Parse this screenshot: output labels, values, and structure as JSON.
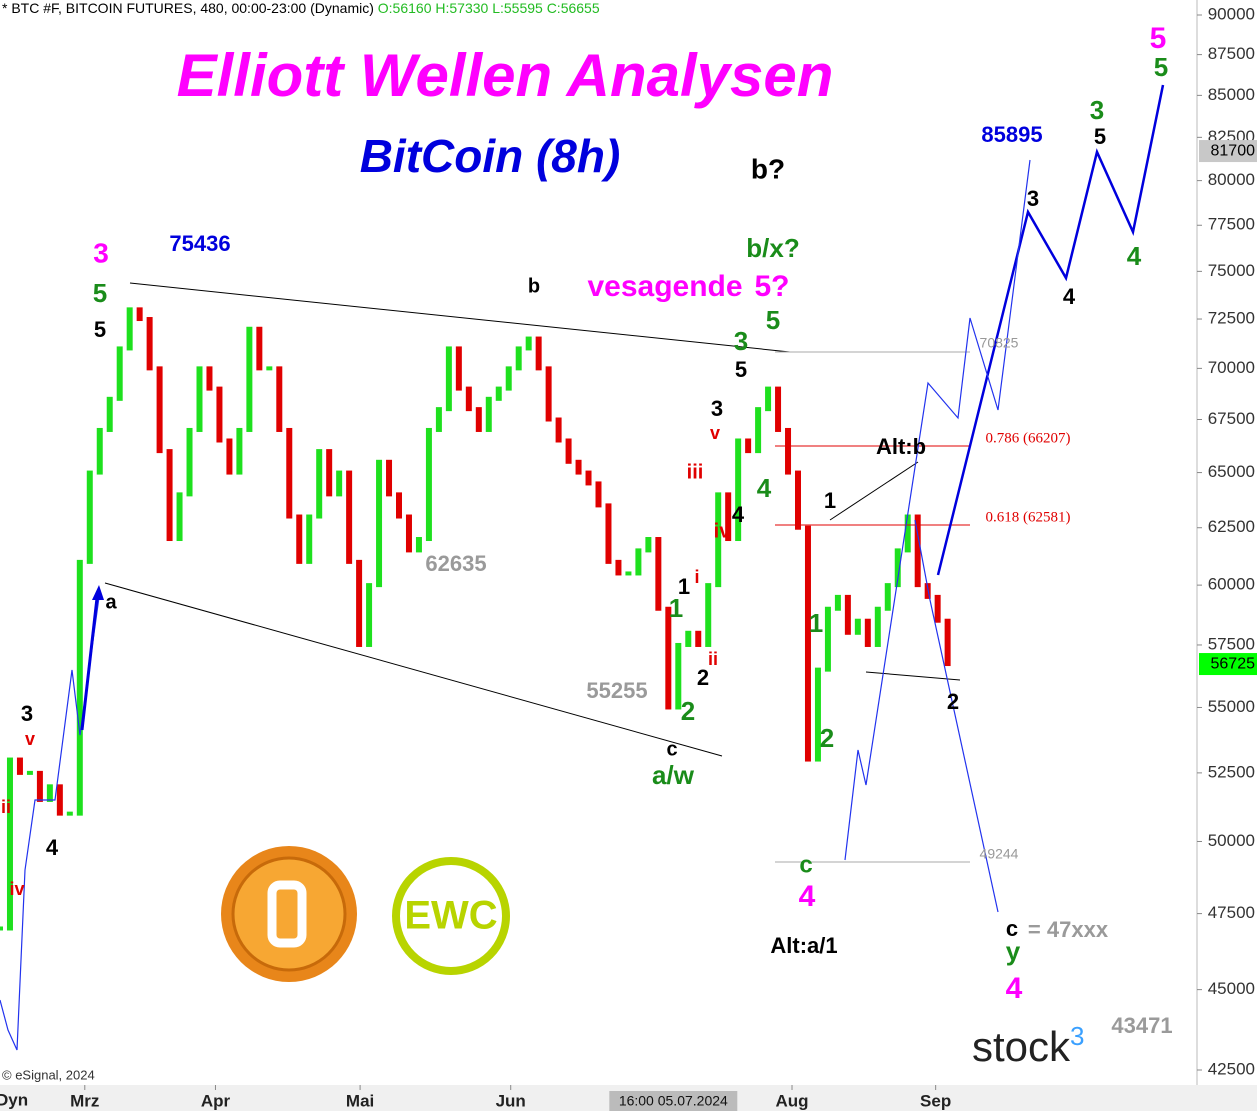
{
  "header": {
    "symbol": "* BTC #F, BITCOIN FUTURES, 480, 00:00-23:00 (Dynamic)",
    "ohlc": "O:56160 H:57330 L:55595 C:56655"
  },
  "chart_data": {
    "type": "candlestick",
    "title": "Elliott Wellen Analysen",
    "subtitle": "BitCoin (8h)",
    "values": [
      47000,
      53000,
      52500,
      52500,
      51500,
      52000,
      51000,
      51000,
      61000,
      65000,
      67000,
      68500,
      71000,
      73000,
      72500,
      70000,
      66000,
      62000,
      64000,
      67000,
      70000,
      69000,
      66500,
      65000,
      67000,
      72000,
      70000,
      70000,
      67000,
      63000,
      61000,
      63000,
      66000,
      64000,
      65000,
      61000,
      57500,
      60000,
      65500,
      64000,
      63000,
      61500,
      62000,
      67000,
      68000,
      71000,
      69000,
      68000,
      67000,
      68500,
      69000,
      70000,
      71000,
      71500,
      70000,
      67500,
      66500,
      65500,
      65000,
      64500,
      63500,
      61000,
      60500,
      60500,
      61500,
      62000,
      59000,
      55000,
      57500,
      58000,
      57500,
      60000,
      64000,
      62000,
      66500,
      66000,
      68000,
      69000,
      67000,
      65000,
      62500,
      53000,
      56500,
      59000,
      59500,
      58000,
      58500,
      57500,
      59000,
      60000,
      61500,
      63000,
      60000,
      59500,
      58500,
      56725
    ],
    "up_color": "#1ee01e",
    "down_color": "#e00000",
    "log_scale": true,
    "ylim": [
      42500,
      90000
    ],
    "yticks": [
      42500,
      45000,
      47500,
      50000,
      52500,
      55000,
      57500,
      60000,
      62500,
      65000,
      67500,
      70000,
      72500,
      75000,
      77500,
      80000,
      82500,
      85000,
      87500,
      90000
    ],
    "xlim": [
      0,
      120
    ],
    "xticks": [
      {
        "value": 8.5,
        "label": "Mrz"
      },
      {
        "value": 21.6,
        "label": "Apr"
      },
      {
        "value": 36.1,
        "label": "Mai"
      },
      {
        "value": 51.2,
        "label": "Jun"
      },
      {
        "value": 79.4,
        "label": "Aug"
      },
      {
        "value": 93.8,
        "label": "Sep"
      }
    ],
    "crosshair": {
      "value": 67.5,
      "label": "16:00 05.07.2024"
    },
    "last_price": 56725,
    "last_price_color": "#00ff00",
    "price_marker": 81700,
    "annotations": [
      "3",
      "5",
      "5",
      "75436",
      "a",
      "b",
      "vesagende",
      "5?",
      "b?",
      "b/x?",
      "5",
      "3",
      "5",
      "3",
      "v",
      "iii",
      "4",
      "4",
      "iv",
      "i",
      "1",
      "1",
      "ii",
      "2",
      "2",
      "c",
      "a/w",
      "62635",
      "55255",
      "1",
      "Alt:b",
      "1",
      "2",
      "c",
      "4",
      "Alt:a/1",
      "2",
      "85895",
      "3",
      "4",
      "3",
      "5",
      "4",
      "5",
      "5",
      "c",
      "= 47xxx",
      "y",
      "4",
      "43471",
      "3",
      "v",
      "ii",
      "4",
      "iv",
      "70825",
      "49244",
      "0.786 (66207)",
      "0.618 (62581)"
    ],
    "copyright": "© eSignal, 2024",
    "left_label": "Dyn",
    "logo_text": "EWC",
    "brand": "stock",
    "brand_sup": "3"
  }
}
